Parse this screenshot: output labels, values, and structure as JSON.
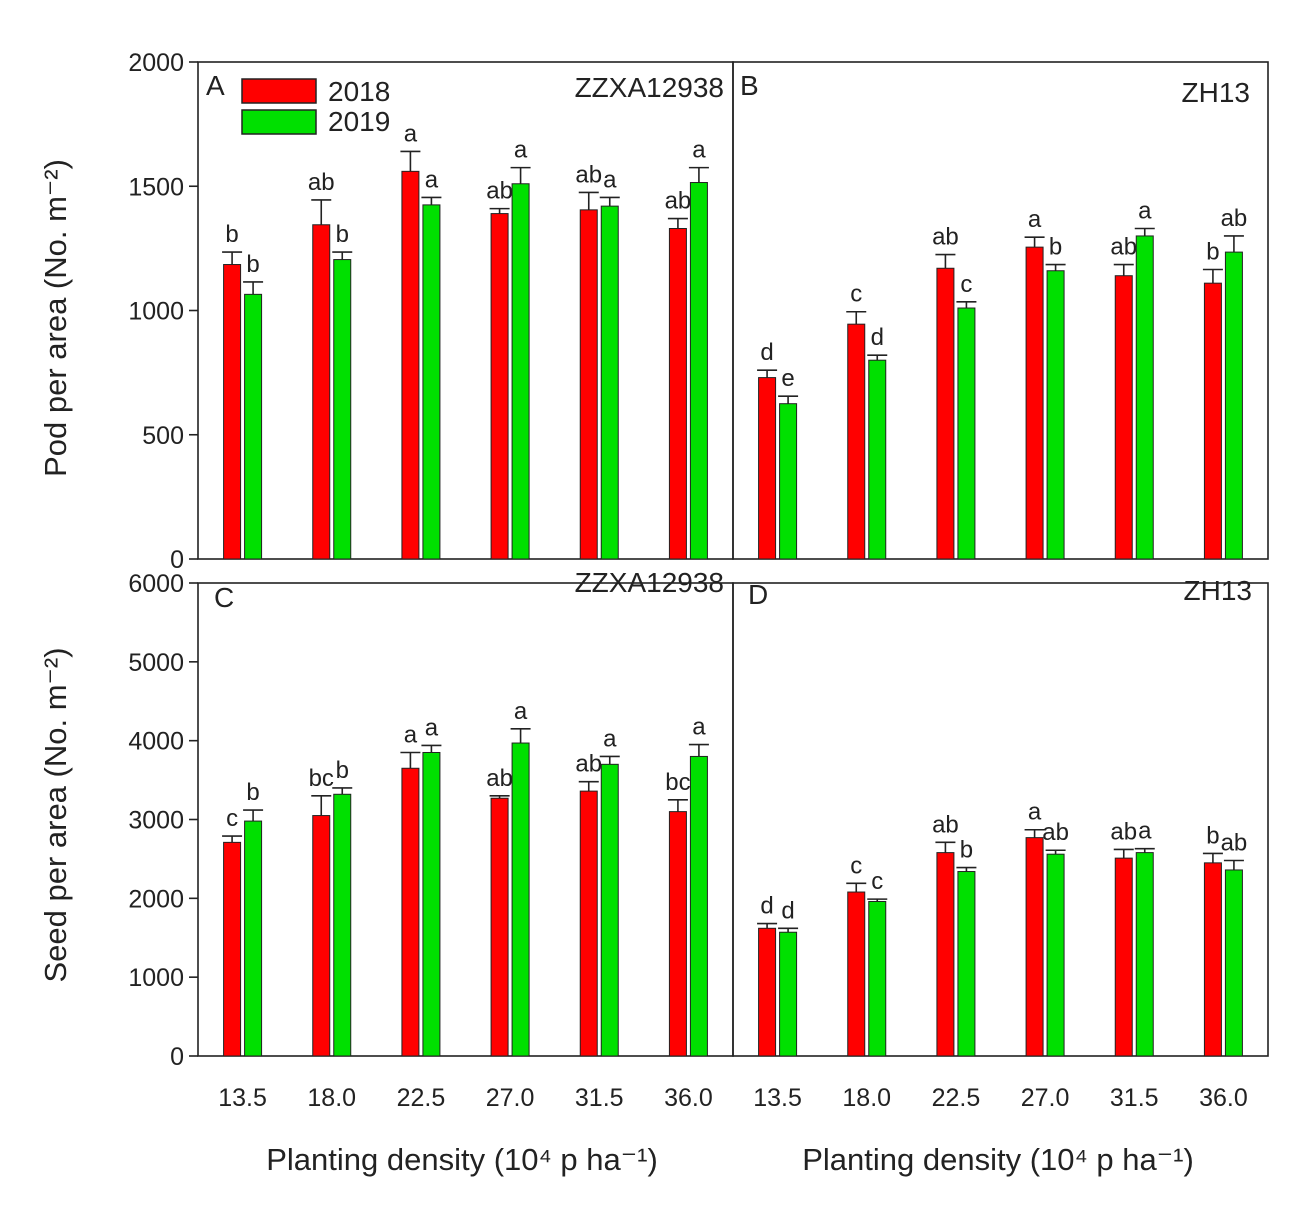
{
  "figure": {
    "ylabel_top": "Pod per area (No. m⁻²)",
    "ylabel_bottom": "Seed per area (No. m⁻²)",
    "xlabel": "Planting density (10⁴ p ha⁻¹)",
    "colors": {
      "2018": "#ff0000",
      "2019": "#00e000",
      "error": "#222222",
      "frame": "#222222"
    }
  },
  "legend": {
    "entries": [
      "2018",
      "2019"
    ]
  },
  "chart_data": [
    {
      "panel": "A",
      "title": "ZZXA12938",
      "type": "bar",
      "categories": [
        "13.5",
        "18.0",
        "22.5",
        "27.0",
        "31.5",
        "36.0"
      ],
      "ylim": [
        0,
        2000
      ],
      "yticks": [
        "0",
        "500",
        "1000",
        "1500",
        "2000"
      ],
      "ylabel": "Pod per area (No. m⁻²)",
      "xlabel": "",
      "series": [
        {
          "name": "2018",
          "values": [
            1185,
            1345,
            1560,
            1390,
            1405,
            1330
          ],
          "errors": [
            50,
            100,
            80,
            20,
            70,
            40
          ],
          "letters": [
            "b",
            "ab",
            "a",
            "ab",
            "ab",
            "ab"
          ]
        },
        {
          "name": "2019",
          "values": [
            1065,
            1205,
            1425,
            1510,
            1420,
            1515
          ],
          "errors": [
            50,
            30,
            30,
            65,
            35,
            60
          ],
          "letters": [
            "b",
            "b",
            "a",
            "a",
            "a",
            "a"
          ]
        }
      ]
    },
    {
      "panel": "B",
      "title": "ZH13",
      "type": "bar",
      "categories": [
        "13.5",
        "18.0",
        "22.5",
        "27.0",
        "31.5",
        "36.0"
      ],
      "ylim": [
        0,
        2000
      ],
      "yticks": [
        "0",
        "500",
        "1000",
        "1500",
        "2000"
      ],
      "ylabel": "",
      "xlabel": "",
      "series": [
        {
          "name": "2018",
          "values": [
            730,
            945,
            1170,
            1255,
            1140,
            1110
          ],
          "errors": [
            30,
            50,
            55,
            40,
            45,
            55
          ],
          "letters": [
            "d",
            "c",
            "ab",
            "a",
            "ab",
            "b"
          ]
        },
        {
          "name": "2019",
          "values": [
            625,
            800,
            1010,
            1160,
            1300,
            1235
          ],
          "errors": [
            30,
            20,
            25,
            25,
            30,
            65
          ],
          "letters": [
            "e",
            "d",
            "c",
            "b",
            "a",
            "ab"
          ]
        }
      ]
    },
    {
      "panel": "C",
      "title": "ZZXA12938",
      "type": "bar",
      "categories": [
        "13.5",
        "18.0",
        "22.5",
        "27.0",
        "31.5",
        "36.0"
      ],
      "ylim": [
        0,
        6000
      ],
      "yticks": [
        "0",
        "1000",
        "2000",
        "3000",
        "4000",
        "5000",
        "6000"
      ],
      "ylabel": "Seed per area (No. m⁻²)",
      "xlabel": "Planting density (10⁴ p ha⁻¹)",
      "series": [
        {
          "name": "2018",
          "values": [
            2710,
            3050,
            3650,
            3270,
            3360,
            3100
          ],
          "errors": [
            80,
            250,
            200,
            30,
            120,
            150
          ],
          "letters": [
            "c",
            "bc",
            "a",
            "ab",
            "ab",
            "bc"
          ]
        },
        {
          "name": "2019",
          "values": [
            2980,
            3320,
            3850,
            3970,
            3700,
            3800
          ],
          "errors": [
            140,
            80,
            90,
            180,
            100,
            150
          ],
          "letters": [
            "b",
            "b",
            "a",
            "a",
            "a",
            "a"
          ]
        }
      ]
    },
    {
      "panel": "D",
      "title": "ZH13",
      "type": "bar",
      "categories": [
        "13.5",
        "18.0",
        "22.5",
        "27.0",
        "31.5",
        "36.0"
      ],
      "ylim": [
        0,
        6000
      ],
      "yticks": [
        "0",
        "1000",
        "2000",
        "3000",
        "4000",
        "5000",
        "6000"
      ],
      "ylabel": "",
      "xlabel": "Planting density (10⁴ p ha⁻¹)",
      "series": [
        {
          "name": "2018",
          "values": [
            1620,
            2080,
            2580,
            2770,
            2510,
            2450
          ],
          "errors": [
            60,
            110,
            130,
            100,
            110,
            120
          ],
          "letters": [
            "d",
            "c",
            "ab",
            "a",
            "ab",
            "b"
          ]
        },
        {
          "name": "2019",
          "values": [
            1570,
            1960,
            2340,
            2560,
            2580,
            2360
          ],
          "errors": [
            50,
            30,
            50,
            50,
            50,
            120
          ],
          "letters": [
            "d",
            "c",
            "b",
            "ab",
            "a",
            "ab"
          ]
        }
      ]
    }
  ]
}
